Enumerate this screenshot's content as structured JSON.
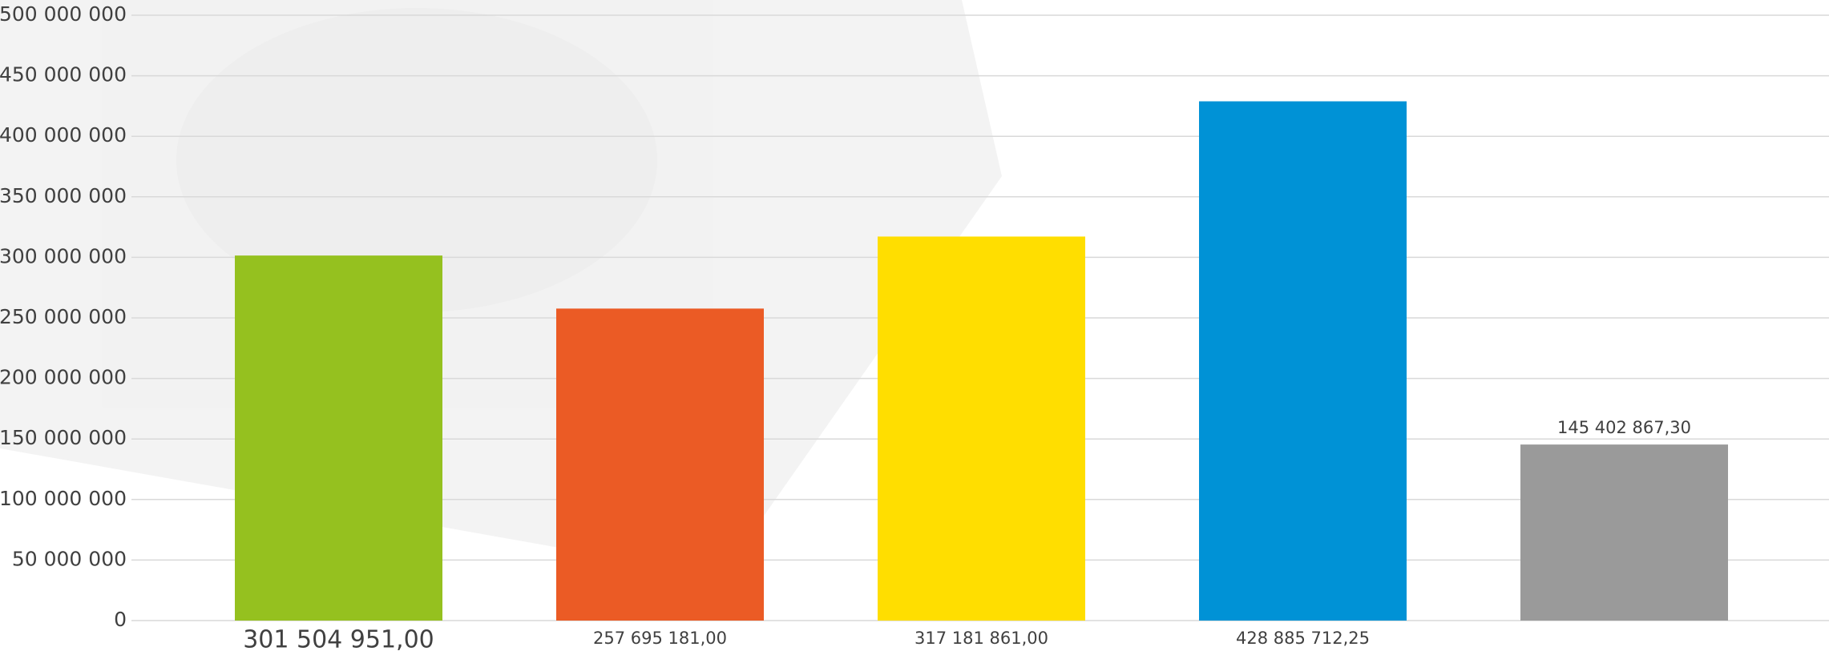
{
  "chart_data": {
    "type": "bar",
    "values": [
      301504951,
      257695181,
      317181861,
      428885712.25,
      145402867.3
    ],
    "value_labels": [
      "301 504 951,00",
      "257 695 181,00",
      "317 181 861,00",
      "428 885 712,25",
      "145 402 867,30"
    ],
    "colors": [
      "#95c11f",
      "#eb5b25",
      "#ffde00",
      "#0092d6",
      "#9a9a9a"
    ],
    "ylim": [
      0,
      500000000
    ],
    "yticks": [
      0,
      {
        "value": 50000000,
        "label": "50 000 000"
      },
      {
        "value": 100000000,
        "label": "100 000 000"
      },
      {
        "value": 150000000,
        "label": "150 000 000"
      },
      {
        "value": 200000000,
        "label": "200 000 000"
      },
      {
        "value": 250000000,
        "label": "250 000 000"
      },
      {
        "value": 300000000,
        "label": "300 000 000"
      },
      {
        "value": 350000000,
        "label": "350 000 000"
      },
      {
        "value": 400000000,
        "label": "400 000 000"
      },
      {
        "value": 450000000,
        "label": "450 000 000"
      },
      {
        "value": 500000000,
        "label": "500 000 000"
      }
    ],
    "grid": true
  }
}
